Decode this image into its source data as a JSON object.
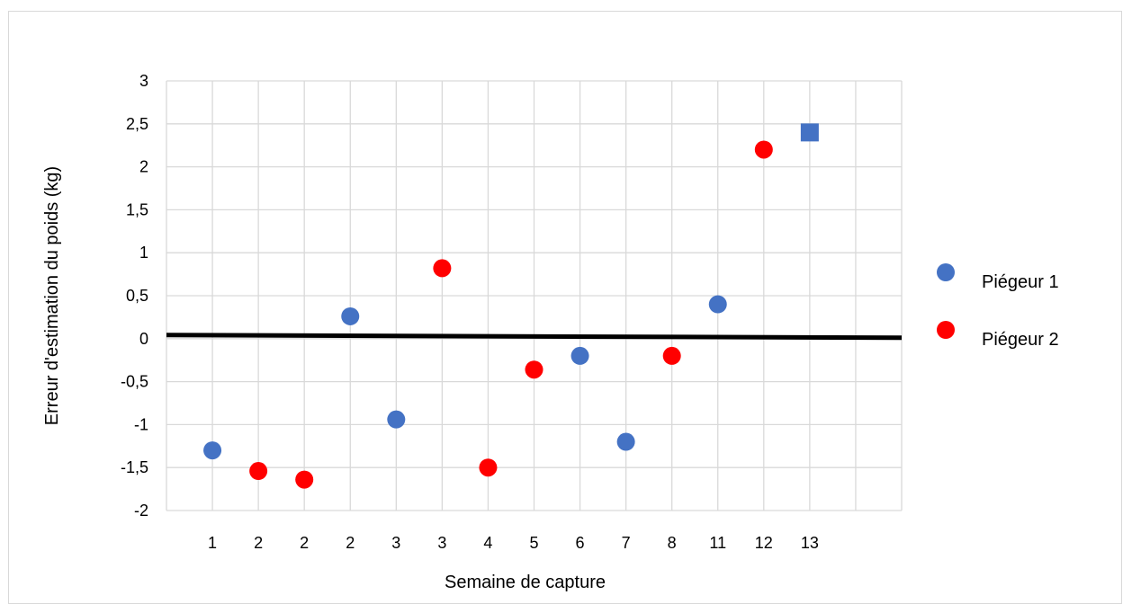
{
  "chart_data": {
    "type": "scatter",
    "title": "",
    "xlabel": "Semaine de capture",
    "ylabel": "Erreur d'estimation du poids (kg)",
    "categories": [
      "1",
      "2",
      "2",
      "2",
      "3",
      "3",
      "4",
      "5",
      "6",
      "7",
      "8",
      "11",
      "12",
      "13"
    ],
    "ylim": [
      -2,
      3
    ],
    "y_ticks": [
      "-2",
      "-1,5",
      "-1",
      "-0,5",
      "0",
      "0,5",
      "1",
      "1,5",
      "2",
      "2,5",
      "3"
    ],
    "y_tick_values": [
      -2,
      -1.5,
      -1,
      -0.5,
      0,
      0.5,
      1,
      1.5,
      2,
      2.5,
      3
    ],
    "grid": true,
    "legend_position": "right",
    "reference_line": {
      "y": 0,
      "color": "#000000"
    },
    "series": [
      {
        "name": "Piégeur 1",
        "color": "#4472C4",
        "points": [
          {
            "category_index": 0,
            "y": -1.3
          },
          {
            "category_index": 3,
            "y": 0.26
          },
          {
            "category_index": 4,
            "y": -0.94
          },
          {
            "category_index": 8,
            "y": -0.2
          },
          {
            "category_index": 9,
            "y": -1.2
          },
          {
            "category_index": 11,
            "y": 0.4
          },
          {
            "category_index": 13,
            "y": 2.4,
            "marker": "square"
          }
        ]
      },
      {
        "name": "Piégeur 2",
        "color": "#FF0000",
        "points": [
          {
            "category_index": 1,
            "y": -1.54
          },
          {
            "category_index": 2,
            "y": -1.64
          },
          {
            "category_index": 5,
            "y": 0.82
          },
          {
            "category_index": 6,
            "y": -1.5
          },
          {
            "category_index": 7,
            "y": -0.36
          },
          {
            "category_index": 10,
            "y": -0.2
          },
          {
            "category_index": 12,
            "y": 2.2
          }
        ]
      }
    ]
  }
}
